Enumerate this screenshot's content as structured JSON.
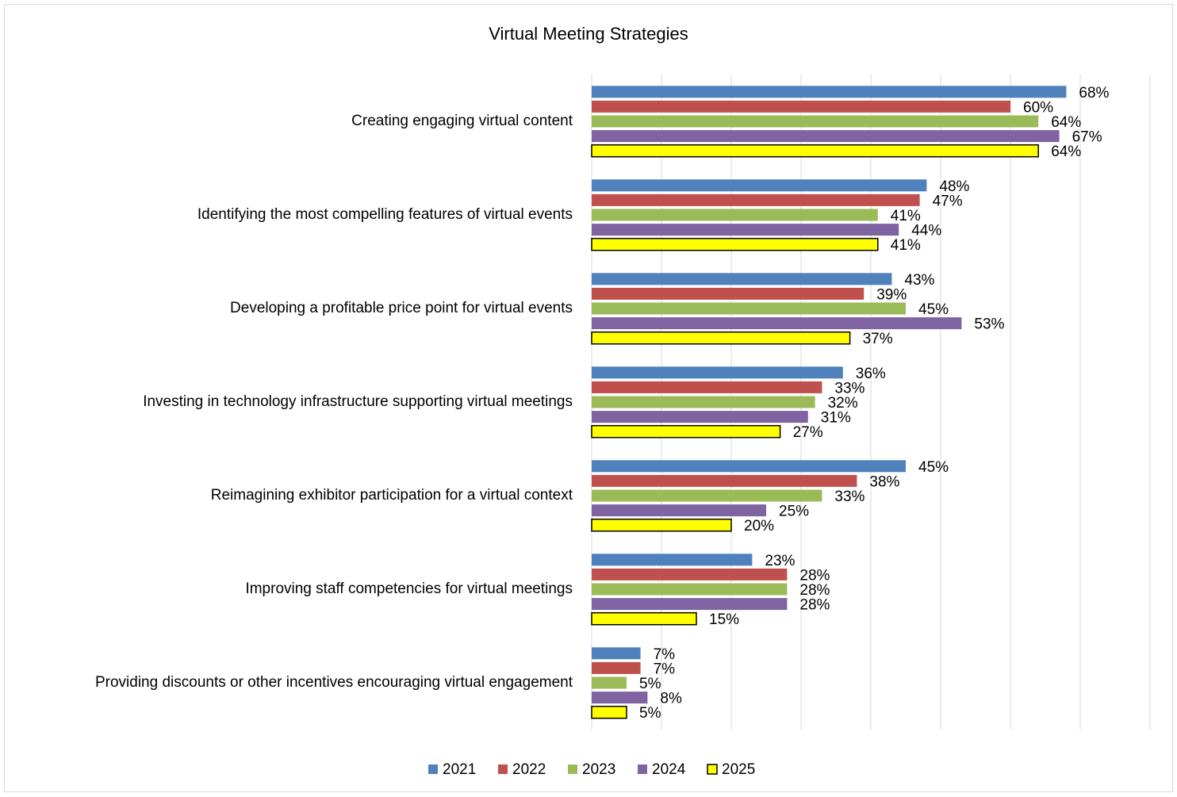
{
  "chart_data": {
    "type": "bar",
    "orientation": "horizontal",
    "title": "Virtual Meeting Strategies",
    "categories": [
      "Creating engaging virtual content",
      "Identifying the most compelling features of virtual events",
      "Developing a profitable price point for virtual events",
      "Investing in technology infrastructure supporting virtual meetings",
      "Reimagining exhibitor participation for a virtual context",
      "Improving staff competencies for virtual meetings",
      "Providing discounts or other incentives encouraging virtual engagement"
    ],
    "series": [
      {
        "name": "2021",
        "color": "#4f81bd",
        "values": [
          68,
          48,
          43,
          36,
          45,
          23,
          7
        ],
        "value_labels": [
          "68%",
          "48%",
          "43%",
          "36%",
          "45%",
          "23%",
          "7%"
        ]
      },
      {
        "name": "2022",
        "color": "#c0504d",
        "values": [
          60,
          47,
          39,
          33,
          38,
          28,
          7
        ],
        "value_labels": [
          "60%",
          "47%",
          "39%",
          "33%",
          "38%",
          "28%",
          "7%"
        ]
      },
      {
        "name": "2023",
        "color": "#9bbb59",
        "values": [
          64,
          41,
          45,
          32,
          33,
          28,
          5
        ],
        "value_labels": [
          "64%",
          "41%",
          "45%",
          "32%",
          "33%",
          "28%",
          "5%"
        ]
      },
      {
        "name": "2024",
        "color": "#8064a2",
        "values": [
          67,
          44,
          53,
          31,
          25,
          28,
          8
        ],
        "value_labels": [
          "67%",
          "44%",
          "53%",
          "31%",
          "25%",
          "28%",
          "8%"
        ]
      },
      {
        "name": "2025",
        "color": "#ffff00",
        "edgecolor": "#000000",
        "values": [
          64,
          41,
          37,
          27,
          20,
          15,
          5
        ],
        "value_labels": [
          "64%",
          "41%",
          "37%",
          "27%",
          "20%",
          "15%",
          "5%"
        ]
      }
    ],
    "xlim": [
      0,
      80
    ],
    "xticks": [
      0,
      10,
      20,
      30,
      40,
      50,
      60,
      70,
      80
    ],
    "grid": true,
    "legend": "bottom"
  }
}
